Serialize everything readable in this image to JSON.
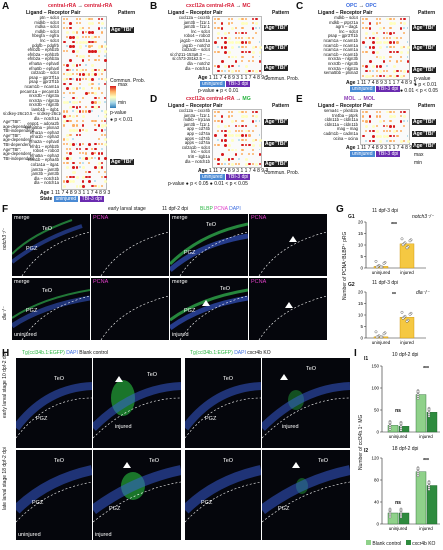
{
  "panel_letters": {
    "A": "A",
    "B": "B",
    "C": "C",
    "D": "D",
    "E": "E",
    "F": "F",
    "G": "G",
    "H": "H",
    "I": "I"
  },
  "A": {
    "title_left": "central-rRA",
    "arrow": "→",
    "title_right": "central-rRA",
    "header_left": "Ligand – Receptor Pair",
    "header_right": "Pattern",
    "pairs": [
      "ptn – sdc4",
      "midkb – sdc4",
      "mdka – sdc4",
      "mdkb – sdc4",
      "hbegfa – egfra",
      "lnc – sdc4",
      "pdgfb – pdgfrb",
      "efnb2b – ephb2b",
      "efnb2a – ephb2b",
      "efnb2a – ephb3a",
      "efna5a – epha4l",
      "efna5b – epha4l",
      "col2a1b – sdc4",
      "psap – gpr37l1a",
      "psap – gpr37l1b",
      "ncam1b – ncam1a",
      "pecam1a – pecam1b",
      "nrxn3b – nlgn3a",
      "nrxn3a – nlgn3a",
      "nrxn3b – nlgn3b",
      "lamb1b – itgb1",
      "si:dkey-26c10.5 – si:dkey-26c10.5",
      "dla – notch1a",
      "enpp1 – adora2b",
      "sema5ba – plxna3",
      "efna1a – epha3",
      "efna1b – epha3",
      "efna2a – epha4l",
      "efnb1 – ephb2b",
      "robo4 – robo3",
      "efna5a – epha3",
      "efna1b – epha4b",
      "col1a1a – itga1",
      "jam3a – jam3b",
      "jam3b – jam3b",
      "dla – notch1b",
      "dla – notch1a"
    ],
    "patterns": [
      "Age\"TBI\"",
      "Age\"TBI\""
    ],
    "side_legend": [
      "Age\"TBI\"",
      "Age\"TBI\"",
      "Age\"TBI\"",
      "Age\"TBI\"",
      "Age\"TBI\""
    ],
    "pattern_text": [
      "Age\"TBI\":",
      "age-dependent",
      "TBI-independent",
      "Age\"TBI\":",
      "age-dependent",
      "TBI-dependent",
      "Age\"TBI\":",
      "age-dependent",
      "TBI-independent"
    ],
    "age_label": "Age",
    "ages": "1 11 7 4 8 9 3 1 1 7 4 8 9 3",
    "state_label": "State",
    "state_uninjured": "uninjured",
    "state_tbi": "TBI-3 dpi",
    "legend_title": "Commun. Prob.",
    "legend_max": "max",
    "legend_min": "min",
    "pvalue": "p-value",
    "pval1": "p < 0.01"
  },
  "B": {
    "title_left": "cxcl12a",
    "title_mid": "central-rRA",
    "arrow": "→",
    "title_right": "MC",
    "header_left": "Ligand – Receptor Pair",
    "header_right": "Pattern",
    "pairs": [
      "cxcl12a – cxcr4b",
      "jam3b – f11r.1",
      "jam3b – f11r.1",
      "lnc – sdc4",
      "robo4 – robo3",
      "jag1b – notch1a",
      "jag1b – notch3",
      "col2a1b – sdc4",
      "si:ch211-153a8.3 – ...",
      "si:ch73-281k2.5 – ...",
      "dla – notch2",
      "dla – notch1a"
    ],
    "patterns": [
      "Age\"TBI\"",
      "Age\"TBI\"",
      "Age\"TBI\""
    ],
    "pval_note": "p-value  ● p < 0.01",
    "age_label": "Age",
    "ages": "1 11 7 4 8 9 3 1 1 7 4 8 9 3",
    "state_uninjured": "uninjured",
    "state_tbi": "TBI-3 dpi",
    "legend_title": "Commun. Prob.",
    "legend_max": "max",
    "legend_min": "min"
  },
  "C": {
    "title_left": "OPC",
    "arrow": "→",
    "title_right": "OPC",
    "header_left": "Ligand – Receptor Pair",
    "header_right": "Pattern",
    "pairs": [
      "mdkb – sdc4",
      "mdkb – ptprz1a",
      "agrn – dag1",
      "lnc – sdc4",
      "psap – gpr37l1b",
      "ncam1a – ncam1b",
      "ncam1b – ncam1a",
      "ncam1a – ncam1a",
      "ncam1b – ncam1b",
      "nrxn3a – nlgn3b",
      "nrxn3b – nlgn3b",
      "nrxn3a – nlgn2a",
      "sema5bb – plxna3"
    ],
    "patterns": [
      "Age\"TBI\"",
      "Age\"TBI\"",
      "Age\"TBI\""
    ],
    "age_label": "Age",
    "ages": "1 11 7 4 8 9 3 1 1 7 4 8 9 3",
    "state_uninjured": "uninjured",
    "state_tbi": "TBI-3 dpi",
    "legend_title": "Commun. Prob.",
    "legend_max": "max",
    "legend_min": "min",
    "pvalue": "p-value",
    "pval1": "p < 0.01",
    "pval2": "0.01 < p < 0.05"
  },
  "D": {
    "title_left": "cxcl12a",
    "title_mid": "central-rRA",
    "arrow": "→",
    "title_right": "MG",
    "header_left": "Ligand – Receptor Pair",
    "header_right": "Pattern",
    "pairs": [
      "cxcl12a – cxcr4b",
      "jam3a – f11r.1",
      "mdkb – lrp1aa",
      "jam3b – f11r.1",
      "app – cd74b",
      "app – cd74a",
      "apps – cd74b",
      "apps – cd74a",
      "col2a1b – sdc4",
      "lnc – sdc4",
      "tri8 – itgb1a",
      "dla – notch1b"
    ],
    "patterns": [
      "Age\"TBI\"",
      "Age\"TBI\"",
      "Age\"TBI\""
    ],
    "pval_note": "p-value  ● p < 0.05  ● 0.01 < p < 0.05",
    "age_label": "Age",
    "ages": "1 11 7 4 8 9 3 1 1 7 4 8 9 3",
    "state_uninjured": "uninjured",
    "state_tbi": "TBI-3 dpi",
    "legend_title": "Commun. Prob.",
    "legend_max": "max",
    "legend_min": "min"
  },
  "E": {
    "title_left": "MOL",
    "arrow": "→",
    "title_right": "MOL",
    "header_left": "Ligand – Receptor Pair",
    "header_right": "Pattern",
    "pairs": [
      "sema4c – plxnb2a",
      "tnr4ba – ptprk",
      "cldn11b – cldn11a",
      "cldn11a – cldn11b",
      "mag – mag",
      "cadm1b – cadm1a",
      "ocina – ocina"
    ],
    "patterns": [
      "Age\"TBI\"",
      "Age\"TBI\"",
      "Age\"TBI\""
    ],
    "age_label": "Age",
    "ages": "1 11 7 4 8 9 3 1 1 7 4 8 9 3",
    "state_uninjured": "uninjured",
    "state_tbi": "TBI-3 dpi",
    "legend_max": "max",
    "legend_min": "min"
  },
  "F": {
    "header_stage": "early larval stage",
    "header_dpi": "11 dpf-2 dpi",
    "ch1": "BLBP",
    "ch2": "PCNA",
    "ch3": "DAPI",
    "row1": "notch3⁻/⁻",
    "row2": "dla⁻/⁻",
    "merge": "merge",
    "pcna": "PCNA",
    "teo": "TeO",
    "pgz": "PGZ",
    "uninjured": "uninjured",
    "injured": "injured"
  },
  "G": {
    "g1": "G1",
    "g2": "G2",
    "title": "11 dpf-3 dpi",
    "g1_geno": "notch3⁻/⁻",
    "g2_geno": "dla⁻/⁻",
    "ylabel": "Number of PCNA⁺BLBP⁺ pRG",
    "sig1": "***",
    "sig2": "**",
    "xcats": [
      "uninjured",
      "injured"
    ],
    "y1ticks": [
      "0",
      "5",
      "10",
      "15",
      "20"
    ],
    "y2ticks": [
      "0",
      "5",
      "10",
      "15",
      "20"
    ]
  },
  "H": {
    "header_a": "Tg(ccl34b.1:EGFP)",
    "header_a2": "DAPI",
    "header_b": "Blank control",
    "header_c": "Tg(ccl34b.1:EGFP)",
    "header_d": "DAPI",
    "header_e": "cxcr4b KO",
    "row1": "early larval stage",
    "row1b": "10 dpf-2 dpi",
    "row2": "late larval stage",
    "row2b": "18 dpf-2 dpi",
    "teo": "TeO",
    "pgz": "PGZ",
    "uninjured": "uninjured",
    "injured": "injured"
  },
  "I": {
    "i1": "I1",
    "i2": "I2",
    "title1": "10 dpf-2 dpi",
    "title2": "18 dpf-2 dpi",
    "ylabel": "Number of ccl34b.1⁺ MG",
    "ns": "ns",
    "sig": "***",
    "xcats": [
      "uninjured",
      "injured"
    ],
    "legend1": "Blank control",
    "legend2": "cxcr4b KO",
    "y1ticks": [
      "0",
      "50",
      "100",
      "150"
    ],
    "y2ticks": [
      "0",
      "40",
      "80",
      "120"
    ],
    "color1": "#8fd18a",
    "color2": "#2e8b3e"
  },
  "chart_data": [
    {
      "type": "bar",
      "title": "11 dpf-3 dpi",
      "subtitle": "notch3⁻/⁻",
      "categories": [
        "uninjured",
        "injured"
      ],
      "values": [
        0.7,
        10.5
      ],
      "ylabel": "Number of PCNA⁺BLBP⁺ pRG",
      "ylim": [
        0,
        20
      ]
    },
    {
      "type": "bar",
      "title": "11 dpf-3 dpi",
      "subtitle": "dla⁻/⁻",
      "categories": [
        "uninjured",
        "injured"
      ],
      "values": [
        0.5,
        9.0
      ],
      "ylabel": "Number of PCNA⁺BLBP⁺ pRG",
      "ylim": [
        0,
        20
      ]
    },
    {
      "type": "bar",
      "title": "10 dpf-2 dpi",
      "categories": [
        "uninjured",
        "injured"
      ],
      "series": [
        {
          "name": "Blank control",
          "values": [
            15,
            85
          ]
        },
        {
          "name": "cxcr4b KO",
          "values": [
            13,
            45
          ]
        }
      ],
      "ylabel": "Number of ccl34b.1⁺ MG",
      "ylim": [
        0,
        150
      ]
    },
    {
      "type": "bar",
      "title": "18 dpf-2 dpi",
      "categories": [
        "uninjured",
        "injured"
      ],
      "series": [
        {
          "name": "Blank control",
          "values": [
            20,
            95
          ]
        },
        {
          "name": "cxcr4b KO",
          "values": [
            20,
            70
          ]
        }
      ],
      "ylabel": "Number of ccl34b.1⁺ MG",
      "ylim": [
        0,
        120
      ]
    }
  ]
}
